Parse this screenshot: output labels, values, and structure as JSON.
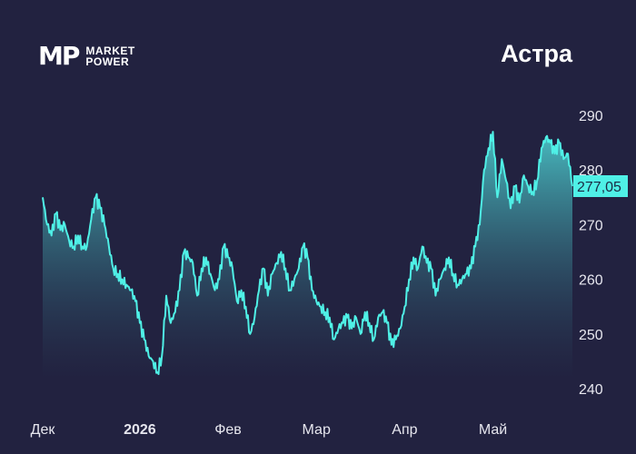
{
  "logo": {
    "mark": "MP",
    "line1": "MARKET",
    "line2": "POWER"
  },
  "ticker": "Астра",
  "colors": {
    "background": "#222240",
    "line": "#4ff0e6",
    "area_top": "#4fd8d8",
    "area_bottom": "#222240"
  },
  "last_price_label": "277,05",
  "chart_data": {
    "type": "area",
    "title": "Астра",
    "xlabel": "",
    "ylabel": "",
    "ylim": [
      238,
      292
    ],
    "y_ticks": [
      240,
      250,
      260,
      270,
      280,
      290
    ],
    "y_tick_labels": [
      "240",
      "250",
      "260",
      "270",
      "280",
      "290"
    ],
    "x_ticks": [
      {
        "label": "Дек",
        "x": 0,
        "bold": false
      },
      {
        "label": "2026",
        "x": 22,
        "bold": true
      },
      {
        "label": "Фев",
        "x": 42,
        "bold": false
      },
      {
        "label": "Мар",
        "x": 62,
        "bold": false
      },
      {
        "label": "Апр",
        "x": 82,
        "bold": false
      },
      {
        "label": "Май",
        "x": 102,
        "bold": false
      }
    ],
    "x_range": [
      0,
      120
    ],
    "last_value": 277.05,
    "series": [
      {
        "values": [
          [
            0,
            275
          ],
          [
            1,
            270
          ],
          [
            2,
            268
          ],
          [
            3,
            272
          ],
          [
            4,
            269
          ],
          [
            5,
            270
          ],
          [
            6,
            267
          ],
          [
            7,
            266
          ],
          [
            8,
            268
          ],
          [
            9,
            266
          ],
          [
            10,
            266
          ],
          [
            11,
            271
          ],
          [
            12,
            275
          ],
          [
            13,
            273
          ],
          [
            14,
            270
          ],
          [
            15,
            266
          ],
          [
            16,
            262
          ],
          [
            17,
            261
          ],
          [
            18,
            260
          ],
          [
            19,
            259
          ],
          [
            20,
            258
          ],
          [
            21,
            256
          ],
          [
            22,
            252
          ],
          [
            23,
            249
          ],
          [
            24,
            246
          ],
          [
            25,
            245
          ],
          [
            26,
            243
          ],
          [
            27,
            246
          ],
          [
            28,
            257
          ],
          [
            29,
            252
          ],
          [
            30,
            254
          ],
          [
            31,
            258
          ],
          [
            32,
            265
          ],
          [
            33,
            264
          ],
          [
            34,
            263
          ],
          [
            35,
            257
          ],
          [
            36,
            262
          ],
          [
            37,
            264
          ],
          [
            38,
            261
          ],
          [
            39,
            258
          ],
          [
            40,
            260
          ],
          [
            41,
            266
          ],
          [
            42,
            264
          ],
          [
            43,
            262
          ],
          [
            44,
            256
          ],
          [
            45,
            258
          ],
          [
            46,
            255
          ],
          [
            47,
            250
          ],
          [
            48,
            253
          ],
          [
            49,
            258
          ],
          [
            50,
            262
          ],
          [
            51,
            257
          ],
          [
            52,
            261
          ],
          [
            53,
            263
          ],
          [
            54,
            265
          ],
          [
            55,
            262
          ],
          [
            56,
            258
          ],
          [
            57,
            260
          ],
          [
            58,
            262
          ],
          [
            59,
            266
          ],
          [
            60,
            264
          ],
          [
            61,
            258
          ],
          [
            62,
            256
          ],
          [
            63,
            255
          ],
          [
            64,
            254
          ],
          [
            65,
            253
          ],
          [
            66,
            249
          ],
          [
            67,
            251
          ],
          [
            68,
            252
          ],
          [
            69,
            253
          ],
          [
            70,
            251
          ],
          [
            71,
            253
          ],
          [
            72,
            250
          ],
          [
            73,
            254
          ],
          [
            74,
            252
          ],
          [
            75,
            249
          ],
          [
            76,
            253
          ],
          [
            77,
            254
          ],
          [
            78,
            252
          ],
          [
            79,
            248
          ],
          [
            80,
            249
          ],
          [
            81,
            251
          ],
          [
            82,
            255
          ],
          [
            83,
            260
          ],
          [
            84,
            264
          ],
          [
            85,
            262
          ],
          [
            86,
            266
          ],
          [
            87,
            263
          ],
          [
            88,
            262
          ],
          [
            89,
            257
          ],
          [
            90,
            260
          ],
          [
            91,
            262
          ],
          [
            92,
            264
          ],
          [
            93,
            261
          ],
          [
            94,
            259
          ],
          [
            95,
            260
          ],
          [
            96,
            261
          ],
          [
            97,
            262
          ],
          [
            98,
            266
          ],
          [
            99,
            270
          ],
          [
            100,
            280
          ],
          [
            101,
            284
          ],
          [
            102,
            287
          ],
          [
            103,
            275
          ],
          [
            104,
            282
          ],
          [
            105,
            278
          ],
          [
            106,
            273
          ],
          [
            107,
            277
          ],
          [
            108,
            274
          ],
          [
            109,
            279
          ],
          [
            110,
            277
          ],
          [
            111,
            276
          ],
          [
            112,
            278
          ],
          [
            113,
            284
          ],
          [
            114,
            286
          ],
          [
            115,
            285
          ],
          [
            116,
            283
          ],
          [
            117,
            285
          ],
          [
            118,
            282
          ],
          [
            119,
            283
          ],
          [
            120,
            277.05
          ]
        ]
      }
    ]
  }
}
